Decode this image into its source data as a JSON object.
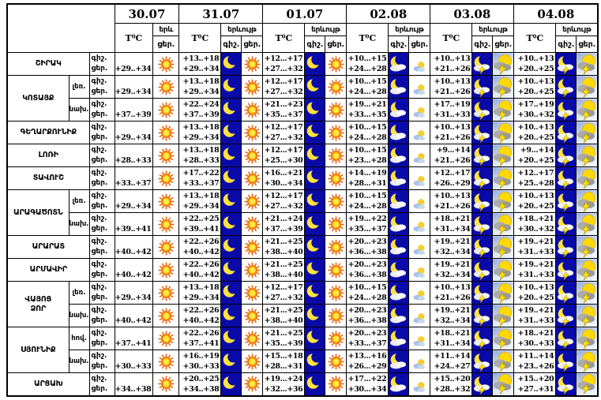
{
  "header": {
    "temp_label": "T⁰C",
    "phenomenon_label": "երևույթ",
    "phenomenon_short": "երև",
    "night_abbr": "գիշ.",
    "day_abbr": "ցեր."
  },
  "dates": [
    {
      "label": "30.07",
      "night_icon": null,
      "day_icon": "sun"
    },
    {
      "label": "31.07",
      "night_icon": "moon",
      "day_icon": "sun"
    },
    {
      "label": "01.07",
      "night_icon": "moon",
      "day_icon": "sun"
    },
    {
      "label": "02.08",
      "night_icon": "moon-cloud",
      "day_icon": "cloud-sun"
    },
    {
      "label": "03.08",
      "night_icon": "moon-storm",
      "day_icon": "sun-storm"
    },
    {
      "label": "04.08",
      "night_icon": "moon-storm",
      "day_icon": "sun-storm"
    }
  ],
  "icons": {
    "sun": "sun-icon",
    "moon": "moon-icon",
    "moon-cloud": "moon-cloud-icon",
    "moon-storm": "moon-cloud-lightning-icon",
    "cloud-sun": "sun-behind-cloud-icon",
    "sun-storm": "sun-cloud-lightning-icon"
  },
  "colors": {
    "night_cell_bg": "#0a0aa8",
    "moon_yellow": "#ffe23d",
    "sun_core": "#ffe94d",
    "sun_ring": "#ffb703",
    "sun_rays": "#e85d04",
    "lightning": "#ffe400",
    "storm_cloud": "#9a9a9a",
    "border": "#000000"
  },
  "regions": [
    {
      "name": "ՇԻՐԱԿ",
      "zones": [
        {
          "label": null,
          "temps": [
            [
              "",
              "+29..+34"
            ],
            [
              "+13..+18",
              "+29..+34"
            ],
            [
              "+12...+17",
              "+27...+32"
            ],
            [
              "+10...+15",
              "+24...+28"
            ],
            [
              "+10..+13",
              "+21..+26"
            ],
            [
              "+10..+13",
              "+20..+25"
            ]
          ]
        }
      ]
    },
    {
      "name": "ԿՈՏԱՅՔ",
      "zones": [
        {
          "label": "լեռ.",
          "temps": [
            [
              "",
              "+29..+34"
            ],
            [
              "+13..+18",
              "+29..+34"
            ],
            [
              "+12...+17",
              "+27...+32"
            ],
            [
              "+10...+15",
              "+24...+28"
            ],
            [
              "+10..+13",
              "+21..+26"
            ],
            [
              "+10..+13",
              "+20..+25"
            ]
          ]
        },
        {
          "label": "նախ.",
          "temps": [
            [
              "",
              "+37..+39"
            ],
            [
              "+22..+24",
              "+37..+39"
            ],
            [
              "+21...+23",
              "+35...+37"
            ],
            [
              "+19...+21",
              "+33...+35"
            ],
            [
              "+17..+19",
              "+31..+33"
            ],
            [
              "+17..+19",
              "+30..+32"
            ]
          ]
        }
      ]
    },
    {
      "name": "ԳԵՂԱՐՔՈՒՆԻՔ",
      "zones": [
        {
          "label": null,
          "temps": [
            [
              "",
              "+29..+34"
            ],
            [
              "+13..+18",
              "+29..+34"
            ],
            [
              "+12...+17",
              "+27...+32"
            ],
            [
              "+10...+15",
              "+24...+28"
            ],
            [
              "+10..+13",
              "+21..+26"
            ],
            [
              "+10..+13",
              "+20..+25"
            ]
          ]
        }
      ]
    },
    {
      "name": "ԼՈՌԻ",
      "zones": [
        {
          "label": null,
          "temps": [
            [
              "",
              "+28..+33"
            ],
            [
              "+13..+18",
              "+28..+33"
            ],
            [
              "+12...+17",
              "+25...+30"
            ],
            [
              "+10...+15",
              "+23...+28"
            ],
            [
              "+9...+14",
              "+21..+26"
            ],
            [
              "+9...+14",
              "+20..+25"
            ]
          ]
        }
      ]
    },
    {
      "name": "ՏԱՎՈՒՇ",
      "zones": [
        {
          "label": null,
          "temps": [
            [
              "",
              "+33..+37"
            ],
            [
              "+17..+22",
              "+33..+37"
            ],
            [
              "+16...+21",
              "+30...+34"
            ],
            [
              "+14...+19",
              "+28...+31"
            ],
            [
              "+12..+17",
              "+26..+29"
            ],
            [
              "+12..+17",
              "+25..+28"
            ]
          ]
        }
      ]
    },
    {
      "name": "ԱՐԱԳԱԾՈՏՆ",
      "zones": [
        {
          "label": "լեռ.",
          "temps": [
            [
              "",
              "+29..+34"
            ],
            [
              "+13..+18",
              "+29..+34"
            ],
            [
              "+12...+17",
              "+27...+32"
            ],
            [
              "+10...+15",
              "+24...+28"
            ],
            [
              "+10..+13",
              "+21..+26"
            ],
            [
              "+10..+13",
              "+20..+25"
            ]
          ]
        },
        {
          "label": "նախ.",
          "temps": [
            [
              "",
              "+39..+41"
            ],
            [
              "+22..+25",
              "+39..+41"
            ],
            [
              "+21...+24",
              "+37...+39"
            ],
            [
              "+19...+22",
              "+35...+37"
            ],
            [
              "+18..+21",
              "+31..+34"
            ],
            [
              "+18..+21",
              "+30..+32"
            ]
          ]
        }
      ]
    },
    {
      "name": "ԱՐԱՐԱՏ",
      "zones": [
        {
          "label": null,
          "temps": [
            [
              "",
              "+40..+42"
            ],
            [
              "+22..+26",
              "+40..+42"
            ],
            [
              "+21...+25",
              "+38...+40"
            ],
            [
              "+20...+23",
              "+36...+38"
            ],
            [
              "+19..+21",
              "+32..+34"
            ],
            [
              "+19..+21",
              "+31..+33"
            ]
          ]
        }
      ]
    },
    {
      "name": "ԱՐՄԱՎԻՐ",
      "zones": [
        {
          "label": null,
          "temps": [
            [
              "",
              "+40..+42"
            ],
            [
              "+22..+26",
              "+40..+42"
            ],
            [
              "+21...+25",
              "+38...+40"
            ],
            [
              "+20...+23",
              "+36...+38"
            ],
            [
              "+19..+21",
              "+32..+34"
            ],
            [
              "+19..+21",
              "+31..+33"
            ]
          ]
        }
      ]
    },
    {
      "name": "ՎԱՅՈՑ\nՁՈՐ",
      "zones": [
        {
          "label": "լեռ.",
          "temps": [
            [
              "",
              "+29..+34"
            ],
            [
              "+13..+18",
              "+29..+34"
            ],
            [
              "+12...+17",
              "+27...+32"
            ],
            [
              "+10...+15",
              "+24...+28"
            ],
            [
              "+10..+13",
              "+21..+26"
            ],
            [
              "+10..+13",
              "+20..+25"
            ]
          ]
        },
        {
          "label": "նախ.",
          "temps": [
            [
              "",
              "+40..+42"
            ],
            [
              "+22..+26",
              "+40..+42"
            ],
            [
              "+21...+25",
              "+38...+40"
            ],
            [
              "+20...+23",
              "+36...+38"
            ],
            [
              "+19..+21",
              "+32..+34"
            ],
            [
              "+19..+21",
              "+31..+33"
            ]
          ]
        }
      ]
    },
    {
      "name": "ՍՅՈՒՆԻՔ",
      "zones": [
        {
          "label": "հով.",
          "temps": [
            [
              "",
              "+37..+41"
            ],
            [
              "+22..+26",
              "+37..+41"
            ],
            [
              "+21...+25",
              "+35...+39"
            ],
            [
              "+20...+23",
              "+33...+37"
            ],
            [
              "+18..+21",
              "+31..+34"
            ],
            [
              "+18..+21",
              "+30..+33"
            ]
          ]
        },
        {
          "label": "նախ.",
          "temps": [
            [
              "",
              "+30..+33"
            ],
            [
              "+16..+19",
              "+30..+33"
            ],
            [
              "+15...+18",
              "+28...+31"
            ],
            [
              "+13...+16",
              "+26...+29"
            ],
            [
              "+11..+14",
              "+24..+27"
            ],
            [
              "+11..+14",
              "+23..+26"
            ]
          ]
        }
      ]
    },
    {
      "name": "ԱՐՑԱԽ",
      "zones": [
        {
          "label": null,
          "temps": [
            [
              "",
              "+34..+38"
            ],
            [
              "+20..+25",
              "+34..+38"
            ],
            [
              "+19...+24",
              "+32...+36"
            ],
            [
              "+17...+22",
              "+30...+34"
            ],
            [
              "+15..+20",
              "+28..+32"
            ],
            [
              "+15..+20",
              "+27..+31"
            ]
          ]
        }
      ]
    }
  ]
}
